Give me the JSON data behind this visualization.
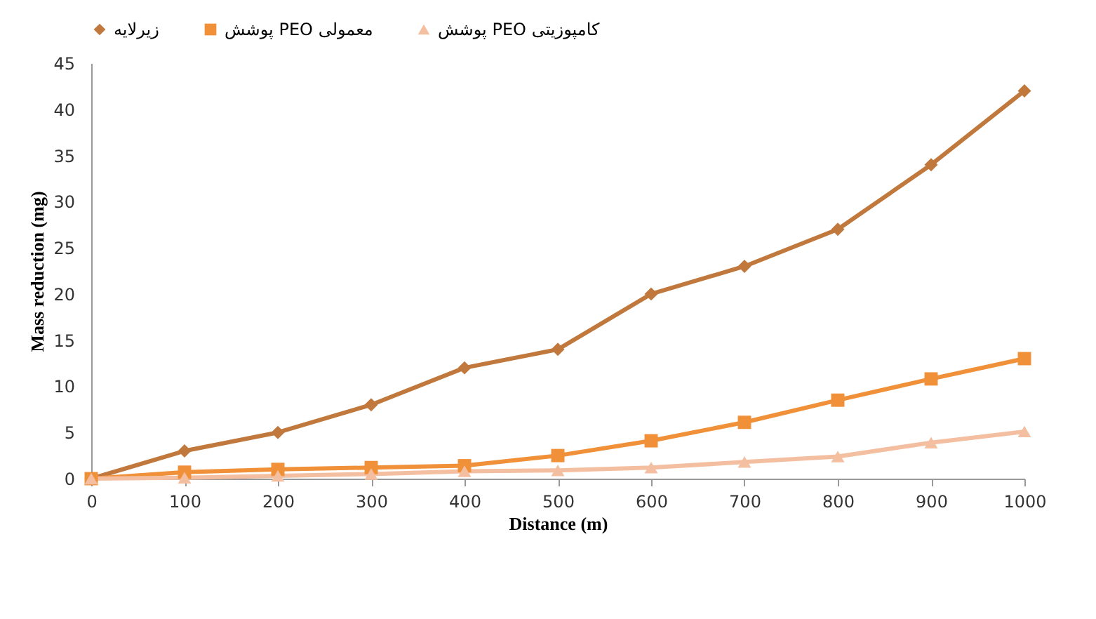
{
  "chart_data": {
    "type": "line",
    "xlabel": "Distance (m)",
    "ylabel": "Mass reduction (mg)",
    "x": [
      0,
      100,
      200,
      300,
      400,
      500,
      600,
      700,
      800,
      900,
      1000
    ],
    "series": [
      {
        "name": "زیرلایه",
        "color": "#c0783c",
        "marker": "diamond",
        "values": [
          0,
          3,
          5,
          8,
          12,
          14,
          20,
          23,
          27,
          34,
          42
        ]
      },
      {
        "name": "پوشش PEO معمولی",
        "color": "#f0913a",
        "marker": "square",
        "values": [
          0,
          0.7,
          1,
          1.2,
          1.4,
          2.5,
          4.1,
          6.1,
          8.5,
          10.8,
          13
        ]
      },
      {
        "name": "پوشش PEO کامپوزیتی",
        "color": "#f4bfa0",
        "marker": "triangle",
        "values": [
          0,
          0.1,
          0.3,
          0.5,
          0.8,
          0.9,
          1.2,
          1.8,
          2.4,
          3.9,
          5.1
        ]
      }
    ],
    "xlim": [
      0,
      1000
    ],
    "xticks": [
      0,
      100,
      200,
      300,
      400,
      500,
      600,
      700,
      800,
      900,
      1000
    ],
    "ylim": [
      0,
      45
    ],
    "yticks": [
      0,
      5,
      10,
      15,
      20,
      25,
      30,
      35,
      40,
      45
    ],
    "grid": false,
    "legend": "top",
    "line_style": "solid"
  }
}
